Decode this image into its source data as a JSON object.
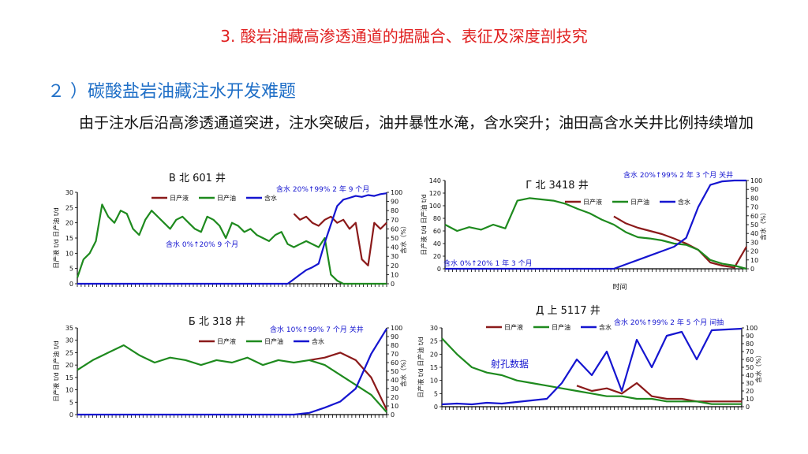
{
  "header": {
    "title": "3. 酸岩油藏高渗透通道的据融合、表征及深度剖技究",
    "subtitle": "２ ）碳酸盐岩油藏注水开发难题",
    "paragraph": "由于注水后沿高渗透通道突进，注水突破后，油井暴性水淹，含水突升；油田高含水关井比例持续增加"
  },
  "colors": {
    "liquid": "#8b1a1a",
    "oil": "#1e8a1e",
    "water": "#1515d0",
    "note": "#1515d0",
    "title": "#e02020",
    "subtitle": "#1f6fc7"
  },
  "legend_labels": {
    "liquid": "日产液",
    "oil": "日产油",
    "water": "含水"
  },
  "chart_data": [
    {
      "type": "line",
      "title": "B 北 601 井",
      "ylabel": "日产液 t/d 日产油 t/d",
      "y2label": "含水（%）",
      "ylim": [
        0,
        30
      ],
      "yticks": [
        0,
        5,
        10,
        15,
        20,
        25,
        30
      ],
      "y2lim": [
        0,
        100
      ],
      "y2ticks": [
        0,
        10,
        20,
        30,
        40,
        50,
        60,
        70,
        80,
        90,
        100
      ],
      "annotations": [
        "含水 20%↑99%  2 年 9 个月",
        "含水 0%↑20%  9 个月"
      ],
      "x": [
        0,
        2,
        4,
        6,
        8,
        10,
        12,
        14,
        16,
        18,
        20,
        22,
        24,
        26,
        28,
        30,
        32,
        34,
        36,
        38,
        40,
        42,
        44,
        46,
        48,
        50,
        52,
        54,
        56,
        58,
        60,
        62,
        64,
        66,
        68,
        70,
        72,
        74,
        76,
        78,
        80,
        82,
        84,
        86,
        88,
        90,
        92,
        94,
        96,
        98,
        100
      ],
      "series": [
        {
          "name": "日产液",
          "axis": "y1",
          "values": [
            null,
            null,
            null,
            null,
            null,
            null,
            null,
            null,
            null,
            null,
            null,
            null,
            null,
            null,
            null,
            null,
            null,
            null,
            null,
            null,
            null,
            null,
            null,
            null,
            null,
            null,
            null,
            null,
            null,
            null,
            null,
            null,
            null,
            null,
            null,
            23,
            21,
            22,
            20,
            19,
            21,
            22,
            20,
            21,
            18,
            20,
            8,
            6,
            20,
            18,
            20
          ]
        },
        {
          "name": "日产油",
          "axis": "y1",
          "values": [
            2,
            8,
            10,
            14,
            26,
            22,
            20,
            24,
            23,
            18,
            16,
            21,
            24,
            22,
            20,
            18,
            21,
            22,
            20,
            18,
            17,
            22,
            21,
            19,
            15,
            20,
            19,
            17,
            18,
            16,
            15,
            14,
            16,
            17,
            13,
            12,
            13,
            14,
            13,
            12,
            15,
            3,
            1,
            0,
            0,
            0,
            0,
            0,
            0,
            0,
            0
          ]
        },
        {
          "name": "含水",
          "axis": "y2",
          "values": [
            0,
            0,
            0,
            0,
            0,
            0,
            0,
            0,
            0,
            0,
            0,
            0,
            0,
            0,
            0,
            0,
            0,
            0,
            0,
            0,
            0,
            0,
            0,
            0,
            0,
            0,
            0,
            0,
            0,
            0,
            0,
            0,
            0,
            0,
            0,
            5,
            10,
            15,
            18,
            22,
            45,
            65,
            85,
            92,
            94,
            96,
            95,
            97,
            96,
            98,
            99
          ]
        }
      ]
    },
    {
      "type": "line",
      "title": "Г 北 3418 井",
      "xlabel": "时间",
      "ylabel": "日产液 t/d 日产油 t/d",
      "y2label": "含水（%）",
      "ylim": [
        0,
        140
      ],
      "yticks": [
        0,
        20,
        40,
        60,
        80,
        100,
        120,
        140
      ],
      "y2lim": [
        0,
        100
      ],
      "y2ticks": [
        0,
        10,
        20,
        30,
        40,
        50,
        60,
        70,
        80,
        90,
        100
      ],
      "annotations": [
        "含水 20%↑99%  2 年 3 个月 关井",
        "含水 0%↑20%  1 年 3 个月"
      ],
      "x": [
        0,
        4,
        8,
        12,
        16,
        20,
        24,
        28,
        32,
        36,
        40,
        44,
        48,
        52,
        56,
        60,
        64,
        68,
        72,
        76,
        80,
        84,
        88,
        92,
        96,
        100
      ],
      "series": [
        {
          "name": "日产液",
          "axis": "y1",
          "values": [
            null,
            null,
            null,
            null,
            null,
            null,
            null,
            null,
            null,
            null,
            null,
            null,
            null,
            null,
            83,
            72,
            65,
            60,
            55,
            48,
            40,
            30,
            10,
            5,
            2,
            35
          ]
        },
        {
          "name": "日产油",
          "axis": "y1",
          "values": [
            70,
            60,
            66,
            62,
            70,
            64,
            108,
            112,
            110,
            108,
            103,
            95,
            88,
            78,
            70,
            58,
            50,
            48,
            45,
            40,
            38,
            30,
            14,
            8,
            5,
            0
          ]
        },
        {
          "name": "含水",
          "axis": "y2",
          "values": [
            0,
            0,
            0,
            0,
            0,
            0,
            0,
            0,
            0,
            0,
            0,
            0,
            0,
            0,
            0,
            5,
            10,
            15,
            20,
            25,
            35,
            70,
            95,
            99,
            100,
            100
          ]
        }
      ]
    },
    {
      "type": "line",
      "title": "Б 北 318 井",
      "ylabel": "日产液 t/d 日产油 t/d",
      "y2label": "含水（%）",
      "ylim": [
        0,
        35
      ],
      "yticks": [
        0,
        5,
        10,
        15,
        20,
        25,
        30,
        35
      ],
      "y2lim": [
        0,
        100
      ],
      "y2ticks": [
        0,
        10,
        20,
        30,
        40,
        50,
        60,
        70,
        80,
        90,
        100
      ],
      "annotations": [
        "含水 10%↑99%  7 个月 关井"
      ],
      "x": [
        0,
        5,
        10,
        15,
        20,
        25,
        30,
        35,
        40,
        45,
        50,
        55,
        60,
        65,
        70,
        75,
        80,
        85,
        90,
        95,
        100
      ],
      "series": [
        {
          "name": "日产液",
          "axis": "y1",
          "values": [
            null,
            null,
            null,
            null,
            null,
            null,
            null,
            null,
            null,
            null,
            null,
            null,
            null,
            null,
            null,
            22,
            23,
            25,
            22,
            15,
            2
          ]
        },
        {
          "name": "日产油",
          "axis": "y1",
          "values": [
            18,
            22,
            25,
            28,
            24,
            21,
            23,
            22,
            20,
            22,
            21,
            23,
            20,
            22,
            21,
            22,
            20,
            16,
            12,
            8,
            1
          ]
        },
        {
          "name": "含水",
          "axis": "y2",
          "values": [
            0,
            0,
            0,
            0,
            0,
            0,
            0,
            0,
            0,
            0,
            0,
            0,
            0,
            0,
            0,
            2,
            8,
            15,
            30,
            70,
            99
          ]
        }
      ]
    },
    {
      "type": "line",
      "title": "Д 上 5117 井",
      "ylabel": "日产液 t/d 日产油 t/d",
      "y2label": "含水（%）",
      "ylim": [
        0,
        30
      ],
      "yticks": [
        0,
        5,
        10,
        15,
        20,
        25,
        30
      ],
      "y2lim": [
        0,
        100
      ],
      "y2ticks": [
        0,
        10,
        20,
        30,
        40,
        50,
        60,
        70,
        80,
        90,
        100
      ],
      "annotations": [
        "含水 20%↑99%  2 年 5 个月 间抽",
        "射孔数据"
      ],
      "x": [
        0,
        5,
        10,
        15,
        20,
        25,
        30,
        35,
        40,
        45,
        50,
        55,
        60,
        65,
        70,
        75,
        80,
        85,
        90,
        95,
        100
      ],
      "series": [
        {
          "name": "日产液",
          "axis": "y1",
          "values": [
            null,
            null,
            null,
            null,
            null,
            null,
            null,
            null,
            null,
            8,
            6,
            7,
            5,
            9,
            4,
            3,
            3,
            2,
            2,
            2,
            2
          ]
        },
        {
          "name": "日产油",
          "axis": "y1",
          "values": [
            26,
            20,
            15,
            13,
            12,
            10,
            9,
            8,
            7,
            6,
            5,
            4,
            4,
            3,
            3,
            2,
            2,
            2,
            1,
            1,
            1
          ]
        },
        {
          "name": "含水",
          "axis": "y2",
          "values": [
            3,
            4,
            3,
            5,
            4,
            6,
            8,
            10,
            30,
            60,
            40,
            70,
            20,
            85,
            50,
            90,
            95,
            60,
            97,
            98,
            99
          ]
        }
      ]
    }
  ]
}
